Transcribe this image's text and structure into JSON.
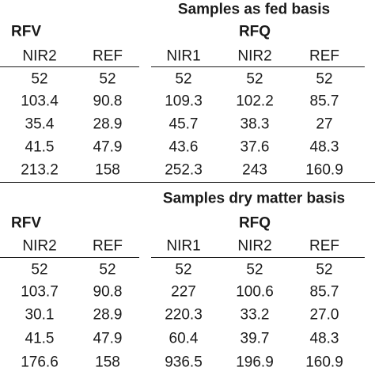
{
  "sections": [
    {
      "title": "Samples as fed basis",
      "group_left": "RFV",
      "group_right": "RFQ",
      "columns": [
        "NIR2",
        "REF",
        "NIR1",
        "NIR2",
        "REF"
      ],
      "rows": [
        [
          "52",
          "52",
          "52",
          "52",
          "52"
        ],
        [
          "103.4",
          "90.8",
          "109.3",
          "102.2",
          "85.7"
        ],
        [
          "35.4",
          "28.9",
          "45.7",
          "38.3",
          "27"
        ],
        [
          "41.5",
          "47.9",
          "43.6",
          "37.6",
          "48.3"
        ],
        [
          "213.2",
          "158",
          "252.3",
          "243",
          "160.9"
        ]
      ]
    },
    {
      "title": "Samples dry matter basis",
      "group_left": "RFV",
      "group_right": "RFQ",
      "columns": [
        "NIR2",
        "REF",
        "NIR1",
        "NIR2",
        "REF"
      ],
      "rows": [
        [
          "52",
          "52",
          "52",
          "52",
          "52"
        ],
        [
          "103.7",
          "90.8",
          "227",
          "100.6",
          "85.7"
        ],
        [
          "30.1",
          "28.9",
          "220.3",
          "33.2",
          "27.0"
        ],
        [
          "41.5",
          "47.9",
          "60.4",
          "39.7",
          "48.3"
        ],
        [
          "176.6",
          "158",
          "936.5",
          "196.9",
          "160.9"
        ]
      ]
    }
  ]
}
